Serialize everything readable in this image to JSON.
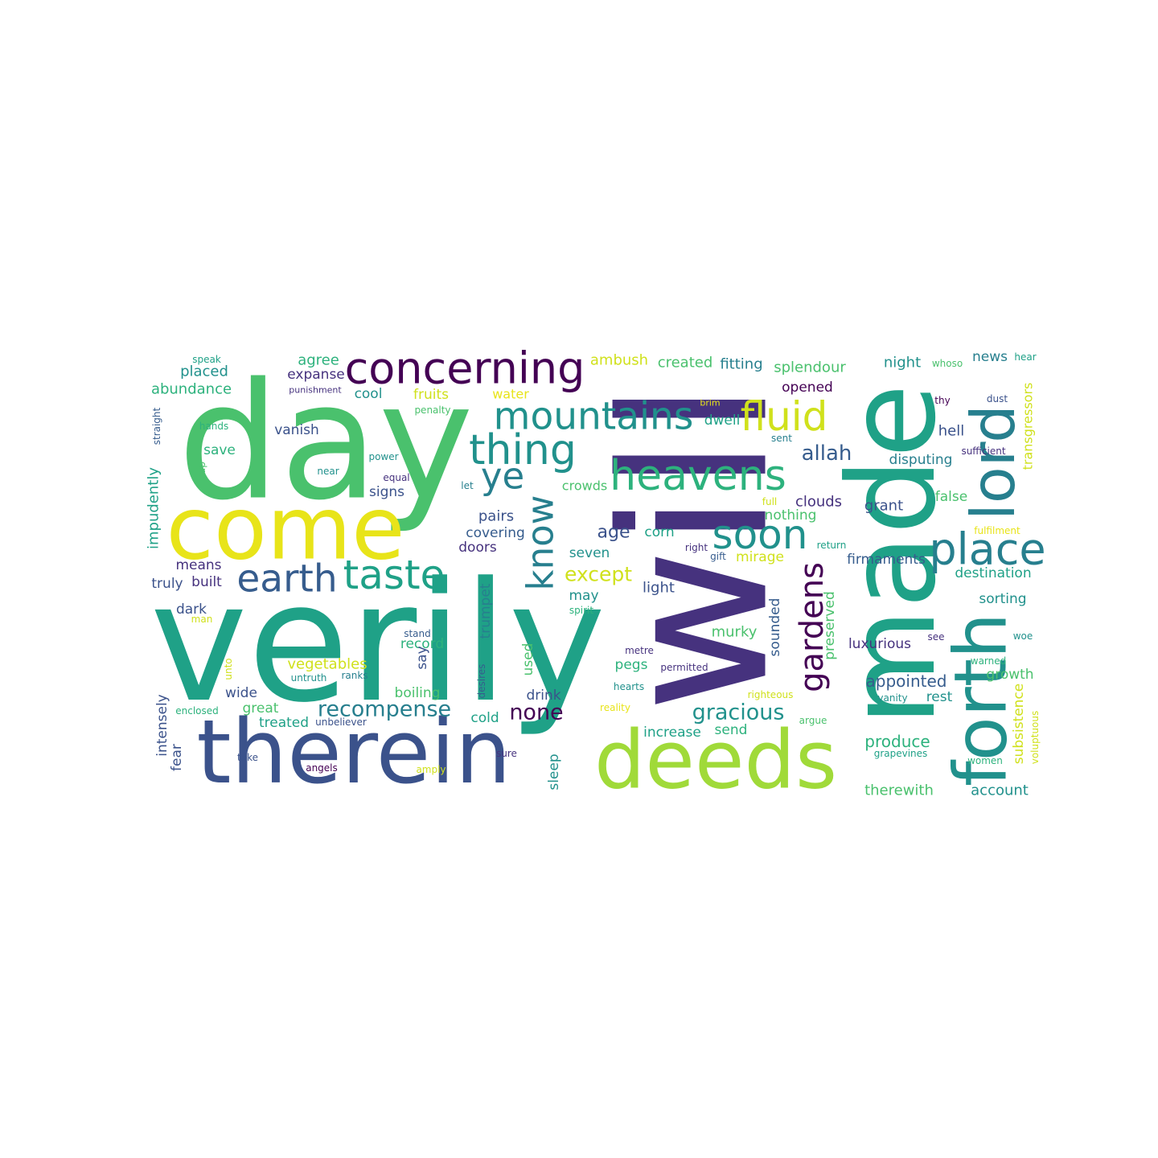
{
  "palette": {
    "dark_purple": "#46327e",
    "indigo": "#440154",
    "blue": "#365c8d",
    "steel": "#3b528b",
    "teal": "#277f8e",
    "cyan_teal": "#21918c",
    "green_teal": "#1fa187",
    "sea_green": "#2db27d",
    "green": "#4ac16d",
    "lime": "#a0da39",
    "yellow_green": "#d0e11c",
    "yellow": "#e8e419"
  },
  "words": [
    {
      "text": "will"
    },
    {
      "text": "verily"
    },
    {
      "text": "day"
    },
    {
      "text": "made"
    },
    {
      "text": "therein"
    },
    {
      "text": "come"
    },
    {
      "text": "forth"
    },
    {
      "text": "deeds"
    },
    {
      "text": "concerning"
    },
    {
      "text": "lord"
    },
    {
      "text": "mountains"
    },
    {
      "text": "heavens"
    },
    {
      "text": "thing"
    },
    {
      "text": "place"
    },
    {
      "text": "fluid"
    },
    {
      "text": "taste"
    },
    {
      "text": "earth"
    },
    {
      "text": "soon"
    },
    {
      "text": "ye"
    },
    {
      "text": "know"
    },
    {
      "text": "gardens"
    },
    {
      "text": "recompense"
    },
    {
      "text": "gracious"
    },
    {
      "text": "none"
    },
    {
      "text": "except"
    },
    {
      "text": "allah"
    },
    {
      "text": "age"
    },
    {
      "text": "produce"
    },
    {
      "text": "appointed"
    },
    {
      "text": "vegetables"
    },
    {
      "text": "therewith"
    },
    {
      "text": "account"
    },
    {
      "text": "abundance"
    },
    {
      "text": "placed"
    },
    {
      "text": "agree"
    },
    {
      "text": "expanse"
    },
    {
      "text": "cool"
    },
    {
      "text": "fruits"
    },
    {
      "text": "water"
    },
    {
      "text": "ambush"
    },
    {
      "text": "created"
    },
    {
      "text": "fitting"
    },
    {
      "text": "splendour"
    },
    {
      "text": "opened"
    },
    {
      "text": "night"
    },
    {
      "text": "news"
    },
    {
      "text": "whoso"
    },
    {
      "text": "hear"
    },
    {
      "text": "speak"
    },
    {
      "text": "punishment"
    },
    {
      "text": "penalty"
    },
    {
      "text": "brim"
    },
    {
      "text": "thy"
    },
    {
      "text": "dust"
    },
    {
      "text": "transgressors"
    },
    {
      "text": "straight"
    },
    {
      "text": "hands"
    },
    {
      "text": "vanish"
    },
    {
      "text": "dwell"
    },
    {
      "text": "sent"
    },
    {
      "text": "hell"
    },
    {
      "text": "sufficient"
    },
    {
      "text": "save"
    },
    {
      "text": "cup"
    },
    {
      "text": "near"
    },
    {
      "text": "power"
    },
    {
      "text": "equal"
    },
    {
      "text": "let"
    },
    {
      "text": "crowds"
    },
    {
      "text": "signs"
    },
    {
      "text": "disputing"
    },
    {
      "text": "false"
    },
    {
      "text": "impudently"
    },
    {
      "text": "pairs"
    },
    {
      "text": "covering"
    },
    {
      "text": "corn"
    },
    {
      "text": "full"
    },
    {
      "text": "clouds"
    },
    {
      "text": "nothing"
    },
    {
      "text": "grant"
    },
    {
      "text": "fulfilment"
    },
    {
      "text": "doors"
    },
    {
      "text": "seven"
    },
    {
      "text": "right"
    },
    {
      "text": "gift"
    },
    {
      "text": "return"
    },
    {
      "text": "mirage"
    },
    {
      "text": "firmaments"
    },
    {
      "text": "means"
    },
    {
      "text": "built"
    },
    {
      "text": "truly"
    },
    {
      "text": "trumpet"
    },
    {
      "text": "light"
    },
    {
      "text": "destination"
    },
    {
      "text": "may"
    },
    {
      "text": "dark"
    },
    {
      "text": "man"
    },
    {
      "text": "spirit"
    },
    {
      "text": "sorting"
    },
    {
      "text": "sounded"
    },
    {
      "text": "preserved"
    },
    {
      "text": "murky"
    },
    {
      "text": "stand"
    },
    {
      "text": "record"
    },
    {
      "text": "say"
    },
    {
      "text": "used"
    },
    {
      "text": "metre"
    },
    {
      "text": "see"
    },
    {
      "text": "woe"
    },
    {
      "text": "luxurious"
    },
    {
      "text": "unto"
    },
    {
      "text": "ranks"
    },
    {
      "text": "untruth"
    },
    {
      "text": "pegs"
    },
    {
      "text": "permitted"
    },
    {
      "text": "warned"
    },
    {
      "text": "desires"
    },
    {
      "text": "wide"
    },
    {
      "text": "boiling"
    },
    {
      "text": "drink"
    },
    {
      "text": "hearts"
    },
    {
      "text": "growth"
    },
    {
      "text": "intensely"
    },
    {
      "text": "great"
    },
    {
      "text": "righteous"
    },
    {
      "text": "rest"
    },
    {
      "text": "vanity"
    },
    {
      "text": "enclosed"
    },
    {
      "text": "treated"
    },
    {
      "text": "unbeliever"
    },
    {
      "text": "cold"
    },
    {
      "text": "reality"
    },
    {
      "text": "argue"
    },
    {
      "text": "subsistence"
    },
    {
      "text": "increase"
    },
    {
      "text": "send"
    },
    {
      "text": "voluptuous"
    },
    {
      "text": "fear"
    },
    {
      "text": "take"
    },
    {
      "text": "sure"
    },
    {
      "text": "grapevines"
    },
    {
      "text": "women"
    },
    {
      "text": "angels"
    },
    {
      "text": "amply"
    },
    {
      "text": "sleep"
    }
  ]
}
